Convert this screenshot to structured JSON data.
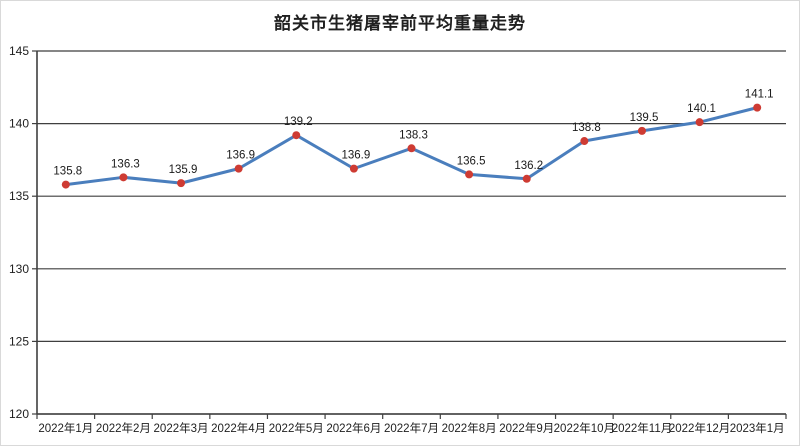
{
  "chart": {
    "colors": {
      "line": "#4A7EBD",
      "marker": "#CE3B33",
      "grid": "#3F3F3F",
      "axis": "#3F3F3F",
      "text": "#1F1F1F",
      "label_text": "#1A1A1A",
      "border": "#D9D9D9",
      "background": "#FFFFFF"
    }
  },
  "chart_data": {
    "type": "line",
    "title": "韶关市生猪屠宰前平均重量走势",
    "categories": [
      "2022年1月",
      "2022年2月",
      "2022年3月",
      "2022年4月",
      "2022年5月",
      "2022年6月",
      "2022年7月",
      "2022年8月",
      "2022年9月",
      "2022年10月",
      "2022年11月",
      "2022年12月",
      "2023年1月"
    ],
    "values": [
      135.8,
      136.3,
      135.9,
      136.9,
      139.2,
      136.9,
      138.3,
      136.5,
      136.2,
      138.8,
      139.5,
      140.1,
      141.1
    ],
    "ylim": [
      120,
      145
    ],
    "yticks": [
      120,
      125,
      130,
      135,
      140,
      145
    ],
    "xlabel": "",
    "ylabel": "",
    "grid": true,
    "legend": "none",
    "data_labels": true
  }
}
